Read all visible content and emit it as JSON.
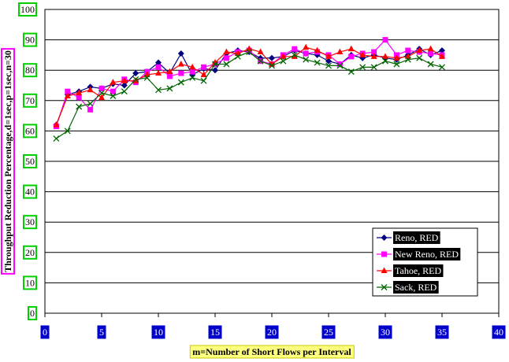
{
  "chart_data": {
    "type": "line",
    "title": "",
    "xlabel": "m=Number of Short Flows per Interval",
    "ylabel": "Throughput Reduction Percentage,d=1sec,p=1sec,n=30",
    "xlim": [
      0,
      40
    ],
    "ylim": [
      0,
      100
    ],
    "x_ticks": [
      0,
      5,
      10,
      15,
      20,
      25,
      30,
      35,
      40
    ],
    "y_ticks": [
      0,
      10,
      20,
      30,
      40,
      50,
      60,
      70,
      80,
      90,
      100
    ],
    "grid": "horizontal",
    "legend_position": "bottom-right",
    "x": [
      1,
      2,
      3,
      4,
      5,
      6,
      7,
      8,
      9,
      10,
      11,
      12,
      13,
      14,
      15,
      16,
      17,
      18,
      19,
      20,
      21,
      22,
      23,
      24,
      25,
      26,
      27,
      28,
      29,
      30,
      31,
      32,
      33,
      34,
      35
    ],
    "series": [
      {
        "name": "Reno, RED",
        "color": "#000080",
        "marker": "diamond",
        "values": [
          62,
          72,
          73,
          74.5,
          74,
          75.5,
          75,
          79,
          79.5,
          82.5,
          79,
          85.5,
          78.5,
          80.5,
          80,
          85.5,
          86.5,
          86,
          84,
          84,
          84.5,
          86.5,
          85.5,
          85,
          83,
          82,
          85,
          84,
          85,
          84,
          83.5,
          85,
          87,
          85,
          86.5
        ]
      },
      {
        "name": "New Reno, RED",
        "color": "#ff00ff",
        "marker": "square",
        "values": [
          61.5,
          73,
          71,
          67,
          74,
          73,
          77,
          76,
          79.5,
          81,
          78,
          79,
          79.5,
          81,
          82,
          84,
          86,
          86.5,
          83,
          82,
          85,
          87,
          85.5,
          86,
          85,
          82,
          84.5,
          85.5,
          86,
          90,
          85,
          86.5,
          86,
          85.5,
          85
        ]
      },
      {
        "name": "Tahoe, RED",
        "color": "#ff0000",
        "marker": "triangle",
        "values": [
          62,
          71.5,
          72.5,
          73.5,
          71,
          76,
          76.5,
          76.5,
          78.5,
          79,
          79.5,
          82,
          81,
          78.5,
          82.5,
          86,
          85.5,
          87,
          86,
          82,
          84.5,
          84.5,
          87.5,
          86.5,
          84.5,
          86,
          87,
          85,
          84.5,
          84.5,
          84,
          84.5,
          86.5,
          87,
          84.5
        ]
      },
      {
        "name": "Sack, RED",
        "color": "#006400",
        "marker": "x",
        "values": [
          57.5,
          60,
          68,
          69,
          72.5,
          71.5,
          73,
          77,
          77.5,
          73.5,
          74,
          76,
          77.5,
          76.5,
          82,
          82,
          84.5,
          86,
          83,
          81.5,
          83,
          85,
          83.5,
          82.5,
          81.5,
          81.5,
          79.5,
          81,
          81,
          83,
          82,
          83.5,
          84,
          82,
          81
        ]
      }
    ]
  },
  "colors": {
    "grid": "#000000",
    "tick_y_box": "#00d000",
    "tick_x_box": "#0000cc",
    "ylabel_box": "#ff00ff",
    "xlabel_box": "#ffff80",
    "legend_label_bg": "#000000"
  }
}
